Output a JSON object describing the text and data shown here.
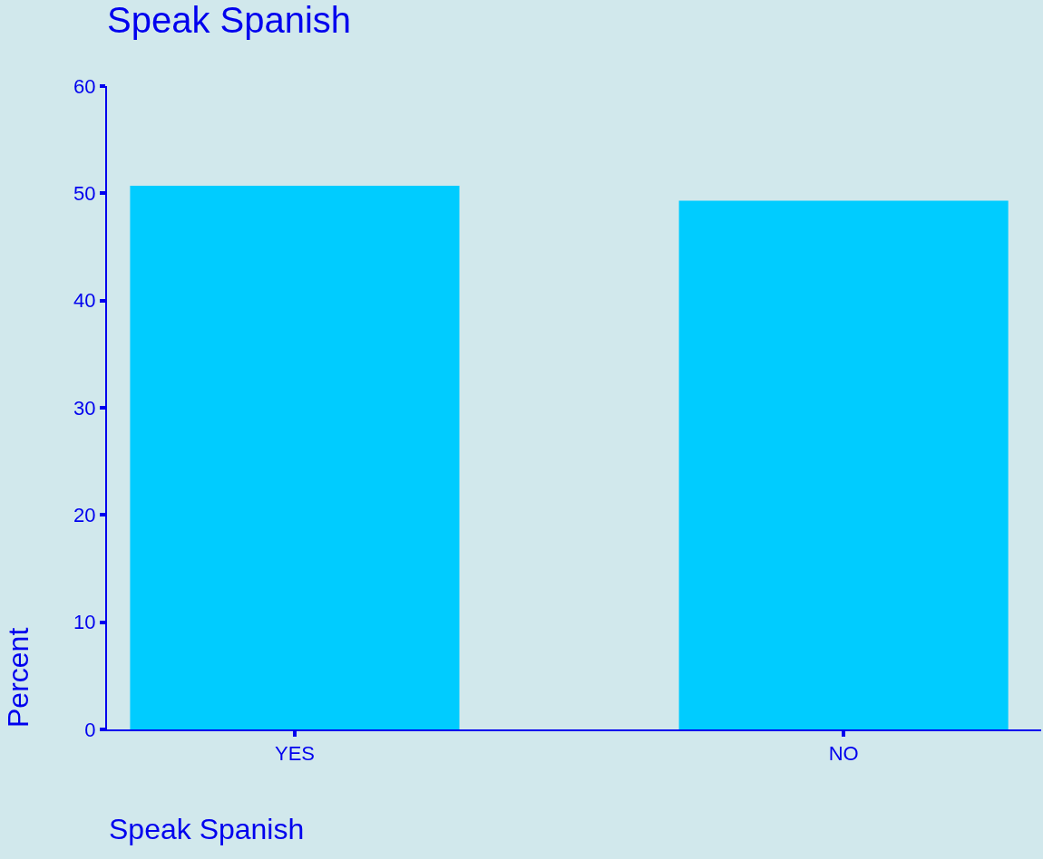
{
  "chart_data": {
    "type": "bar",
    "title": "Speak Spanish",
    "xlabel": "Speak Spanish",
    "ylabel": "Percent",
    "categories": [
      "YES",
      "NO"
    ],
    "values": [
      50.7,
      49.3
    ],
    "color": "#00ccff",
    "ylim": [
      0,
      60
    ],
    "yticks": [
      0,
      10,
      20,
      30,
      40,
      50,
      60
    ],
    "grid": false,
    "legend": false
  }
}
